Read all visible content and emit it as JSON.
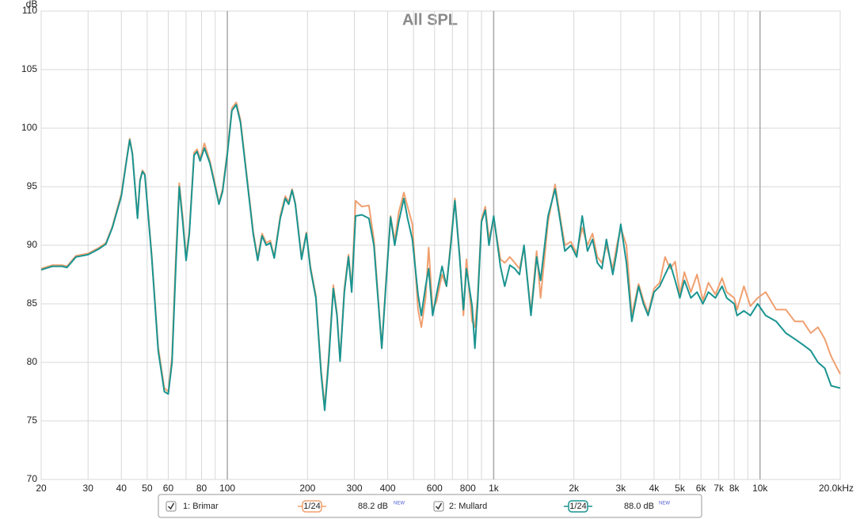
{
  "chart_data": {
    "type": "line",
    "title": "All SPL",
    "y_unit": "dB",
    "x": [
      20,
      22,
      24,
      25,
      27,
      30,
      33,
      35,
      37,
      40,
      42,
      43,
      44,
      46,
      47,
      48,
      49,
      52,
      55,
      58,
      60,
      62,
      64,
      66,
      68,
      70,
      72,
      75,
      77,
      79,
      82,
      86,
      90,
      93,
      96,
      100,
      104,
      108,
      112,
      118,
      125,
      130,
      135,
      140,
      145,
      150,
      158,
      165,
      170,
      175,
      180,
      190,
      198,
      205,
      215,
      225,
      232,
      240,
      250,
      258,
      265,
      275,
      285,
      293,
      303,
      320,
      340,
      355,
      372,
      380,
      395,
      410,
      425,
      440,
      460,
      475,
      495,
      520,
      535,
      555,
      570,
      590,
      610,
      640,
      665,
      690,
      715,
      745,
      770,
      790,
      830,
      850,
      870,
      900,
      930,
      960,
      1000,
      1060,
      1100,
      1150,
      1200,
      1250,
      1300,
      1380,
      1450,
      1500,
      1600,
      1700,
      1780,
      1850,
      1950,
      2050,
      2150,
      2250,
      2350,
      2450,
      2550,
      2650,
      2800,
      2900,
      3000,
      3150,
      3300,
      3500,
      3650,
      3800,
      4000,
      4200,
      4400,
      4600,
      4800,
      5000,
      5200,
      5500,
      5800,
      6100,
      6400,
      6800,
      7200,
      7500,
      8000,
      8200,
      8700,
      9200,
      9800,
      10500,
      11500,
      12500,
      13500,
      14500,
      15500,
      16500,
      17500,
      18500,
      20000
    ],
    "series": [
      {
        "name": "1: Brimar",
        "color": "#f0a070",
        "smoothing": "1/24",
        "level": "88.2 dB",
        "badge": "NEW",
        "values": [
          88.0,
          88.3,
          88.3,
          88.2,
          89.1,
          89.3,
          89.8,
          90.2,
          91.6,
          94.4,
          97.6,
          99.1,
          97.9,
          92.4,
          95.6,
          96.4,
          96.1,
          89.2,
          81.3,
          77.8,
          77.5,
          80.5,
          88.8,
          95.3,
          92.4,
          88.9,
          91.3,
          97.9,
          98.2,
          97.4,
          98.7,
          97.2,
          95.2,
          93.6,
          94.8,
          98.0,
          101.7,
          102.2,
          100.7,
          96.2,
          91.2,
          88.9,
          91.0,
          90.2,
          90.4,
          89.0,
          92.5,
          94.2,
          93.7,
          94.8,
          93.6,
          89.0,
          91.1,
          88.2,
          85.7,
          79.3,
          76.2,
          80.4,
          86.6,
          84.2,
          80.3,
          86.3,
          89.2,
          86.3,
          93.8,
          93.3,
          93.4,
          90.5,
          84.2,
          81.3,
          87.3,
          92.5,
          90.4,
          92.8,
          94.5,
          93.3,
          91.8,
          84.5,
          83.0,
          85.5,
          89.8,
          84.5,
          85.2,
          87.5,
          86.5,
          90.3,
          94.0,
          89.2,
          84.0,
          88.8,
          83.5,
          83.0,
          85.5,
          92.2,
          93.3,
          90.5,
          92.3,
          88.8,
          88.5,
          89.0,
          88.5,
          88.0,
          89.8,
          84.3,
          89.5,
          85.5,
          92.0,
          95.2,
          92.3,
          90.0,
          90.3,
          89.3,
          91.5,
          90.0,
          91.0,
          89.0,
          88.5,
          90.0,
          88.0,
          90.0,
          91.5,
          90.0,
          84.0,
          86.7,
          85.3,
          84.2,
          86.3,
          86.8,
          89.0,
          88.0,
          88.6,
          85.8,
          87.7,
          86.0,
          87.5,
          85.3,
          86.8,
          85.8,
          87.2,
          86.0,
          85.5,
          84.5,
          86.5,
          84.8,
          85.5,
          86.0,
          84.5,
          84.5,
          83.5,
          83.5,
          82.5,
          83.0,
          82.0,
          80.5,
          79.0
        ]
      },
      {
        "name": "2: Mullard",
        "color": "#1a9490",
        "smoothing": "1/24",
        "level": "88.0 dB",
        "badge": "NEW",
        "values": [
          87.9,
          88.2,
          88.2,
          88.1,
          89.0,
          89.2,
          89.7,
          90.1,
          91.5,
          94.2,
          97.5,
          99.0,
          97.8,
          92.3,
          95.5,
          96.3,
          96.0,
          89.0,
          81.0,
          77.5,
          77.3,
          80.0,
          88.0,
          95.0,
          92.0,
          88.7,
          91.0,
          97.7,
          98.0,
          97.2,
          98.3,
          97.0,
          95.0,
          93.5,
          94.6,
          97.8,
          101.5,
          102.0,
          100.5,
          96.0,
          91.0,
          88.7,
          90.8,
          90.0,
          90.2,
          88.9,
          92.3,
          94.0,
          93.5,
          94.7,
          93.5,
          88.8,
          91.0,
          88.0,
          85.5,
          79.0,
          75.9,
          80.0,
          86.3,
          84.0,
          80.1,
          86.0,
          89.0,
          86.0,
          92.5,
          92.6,
          92.3,
          90.0,
          84.0,
          81.2,
          87.0,
          92.4,
          90.0,
          92.0,
          94.0,
          92.3,
          90.5,
          85.8,
          84.0,
          86.5,
          88.0,
          84.0,
          85.8,
          88.2,
          86.5,
          90.0,
          93.8,
          89.0,
          84.5,
          88.0,
          84.8,
          81.2,
          85.0,
          92.0,
          93.0,
          90.0,
          92.5,
          88.2,
          86.5,
          88.3,
          88.0,
          87.5,
          90.0,
          84.0,
          89.0,
          87.0,
          92.5,
          94.8,
          92.0,
          89.5,
          90.0,
          89.0,
          92.5,
          89.5,
          90.5,
          88.5,
          88.0,
          90.5,
          87.5,
          89.5,
          91.8,
          88.5,
          83.5,
          86.5,
          85.0,
          84.0,
          86.0,
          86.5,
          87.5,
          88.4,
          87.0,
          85.5,
          87.0,
          85.5,
          86.0,
          85.0,
          86.0,
          85.5,
          86.5,
          85.5,
          85.0,
          84.0,
          84.4,
          84.0,
          85.0,
          84.0,
          83.5,
          82.5,
          82.0,
          81.5,
          81.0,
          80.0,
          79.5,
          78.0,
          77.8
        ]
      }
    ],
    "xlog": true,
    "xlim": [
      20,
      20000
    ],
    "ylim": [
      70,
      110
    ],
    "xticks": [
      20,
      30,
      40,
      50,
      60,
      80,
      100,
      200,
      300,
      400,
      600,
      800,
      {
        "value": 1000,
        "label": "1k"
      },
      {
        "value": 2000,
        "label": "2k"
      },
      {
        "value": 3000,
        "label": "3k"
      },
      {
        "value": 4000,
        "label": "4k"
      },
      {
        "value": 5000,
        "label": "5k"
      },
      {
        "value": 6000,
        "label": "6k"
      },
      {
        "value": 7000,
        "label": "7k"
      },
      {
        "value": 8000,
        "label": "8k"
      },
      {
        "value": 10000,
        "label": "10k"
      },
      {
        "value": 20000,
        "label": "20.0kHz"
      }
    ],
    "xgrid_minor": [
      70,
      90,
      500,
      700,
      900,
      9000
    ],
    "yticks": [
      70,
      75,
      80,
      85,
      90,
      95,
      100,
      105,
      110
    ],
    "grid": true
  }
}
